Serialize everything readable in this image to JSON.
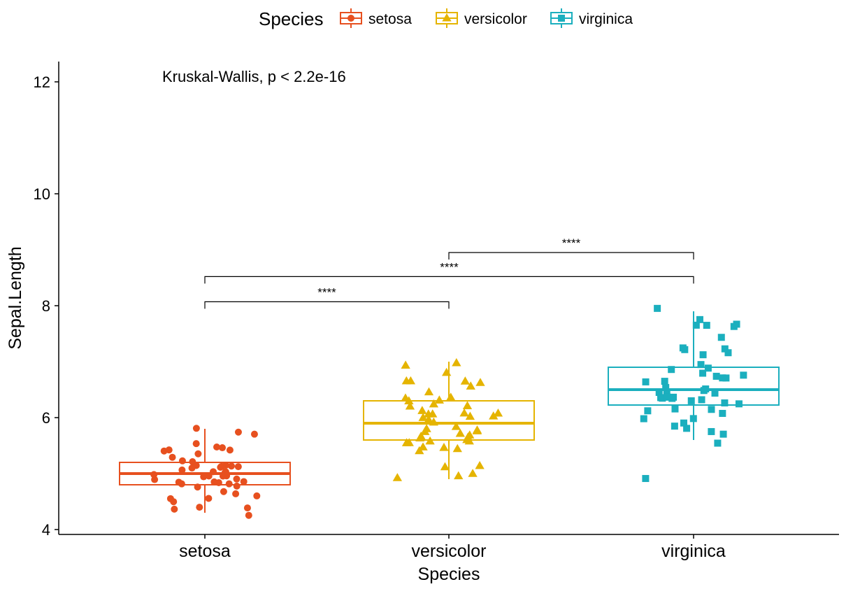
{
  "chart_data": {
    "type": "box",
    "xlabel": "Species",
    "ylabel": "Sepal.Length",
    "ylim": [
      4,
      12
    ],
    "yticks": [
      "4",
      "6",
      "8",
      "10",
      "12"
    ],
    "categories": [
      "setosa",
      "versicolor",
      "virginica"
    ],
    "legend": {
      "title": "Species",
      "position": "top",
      "entries": [
        "setosa",
        "versicolor",
        "virginica"
      ]
    },
    "colors": {
      "setosa": "#E7501F",
      "versicolor": "#E5B400",
      "virginica": "#1BAFBE"
    },
    "shapes": {
      "setosa": "circle",
      "versicolor": "triangle",
      "virginica": "square"
    },
    "boxes": [
      {
        "name": "setosa",
        "min": 4.3,
        "q1": 4.8,
        "median": 5.0,
        "q3": 5.2,
        "max": 5.8
      },
      {
        "name": "versicolor",
        "min": 4.9,
        "q1": 5.6,
        "median": 5.9,
        "q3": 6.3,
        "max": 7.0
      },
      {
        "name": "virginica",
        "min": 5.6,
        "q1": 6.225,
        "median": 6.5,
        "q3": 6.9,
        "max": 7.9,
        "outliers": [
          4.9
        ]
      }
    ],
    "points": {
      "setosa": [
        5.1,
        4.9,
        4.7,
        4.6,
        5.0,
        5.4,
        4.6,
        5.0,
        4.4,
        4.9,
        5.4,
        4.8,
        4.8,
        4.3,
        5.8,
        5.7,
        5.4,
        5.1,
        5.7,
        5.1,
        5.4,
        5.1,
        4.6,
        5.1,
        4.8,
        5.0,
        5.0,
        5.2,
        5.2,
        4.7,
        4.8,
        5.4,
        5.2,
        5.5,
        4.9,
        5.0,
        5.5,
        4.9,
        4.4,
        5.1,
        5.0,
        4.5,
        4.4,
        5.0,
        5.1,
        4.8,
        5.1,
        4.6,
        5.3,
        5.0
      ],
      "versicolor": [
        7.0,
        6.4,
        6.9,
        5.5,
        6.5,
        5.7,
        6.3,
        4.9,
        6.6,
        5.2,
        5.0,
        5.9,
        6.0,
        6.1,
        5.6,
        6.7,
        5.6,
        5.8,
        6.2,
        5.6,
        5.9,
        6.1,
        6.3,
        6.1,
        6.4,
        6.6,
        6.8,
        6.7,
        6.0,
        5.7,
        5.5,
        5.5,
        5.8,
        6.0,
        5.4,
        6.0,
        6.7,
        6.3,
        5.6,
        5.5,
        5.5,
        6.1,
        5.8,
        5.0,
        5.6,
        5.7,
        5.7,
        6.2,
        5.1,
        5.7
      ],
      "virginica": [
        6.3,
        5.8,
        7.1,
        6.3,
        6.5,
        7.6,
        4.9,
        7.3,
        6.7,
        7.2,
        6.5,
        6.4,
        6.8,
        5.7,
        5.8,
        6.4,
        6.5,
        7.7,
        7.7,
        6.0,
        6.9,
        5.6,
        7.7,
        6.3,
        6.7,
        7.2,
        6.2,
        6.1,
        6.4,
        7.2,
        7.4,
        7.9,
        6.4,
        6.3,
        6.1,
        7.7,
        6.3,
        6.4,
        6.0,
        6.9,
        6.7,
        6.9,
        5.8,
        6.8,
        6.7,
        6.7,
        6.3,
        6.5,
        6.2,
        5.9
      ]
    },
    "comparisons": [
      {
        "from": "setosa",
        "to": "versicolor",
        "y": 8.07,
        "label": "****"
      },
      {
        "from": "setosa",
        "to": "virginica",
        "y": 8.52,
        "label": "****"
      },
      {
        "from": "versicolor",
        "to": "virginica",
        "y": 8.95,
        "label": "****"
      }
    ],
    "annotation": "Kruskal-Wallis, p < 2.2e-16",
    "grid": false
  }
}
